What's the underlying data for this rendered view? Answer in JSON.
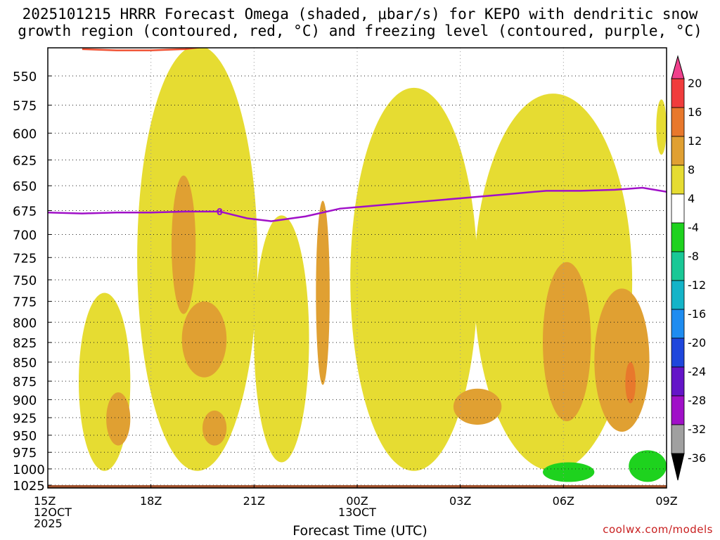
{
  "title_line1": "2025101215 HRRR Forecast Omega (shaded, μbar/s) for KEPO with dendritic snow",
  "title_line2": "growth region (contoured, red, °C) and freezing level (contoured, purple, °C)",
  "credit": "coolwx.com/models",
  "chart_data": {
    "type": "heatmap",
    "title": "2025101215 HRRR Forecast Omega (shaded, μbar/s) for KEPO with dendritic snow growth region (contoured, red, °C) and freezing level (contoured, purple, °C)",
    "xlabel": "Forecast Time (UTC)",
    "ylabel": "",
    "x_ticks": [
      {
        "hour": 0,
        "lines": [
          "15Z",
          "12OCT",
          "2025"
        ]
      },
      {
        "hour": 3,
        "lines": [
          "18Z"
        ]
      },
      {
        "hour": 6,
        "lines": [
          "21Z"
        ]
      },
      {
        "hour": 9,
        "lines": [
          "00Z",
          "13OCT"
        ]
      },
      {
        "hour": 12,
        "lines": [
          "03Z"
        ]
      },
      {
        "hour": 15,
        "lines": [
          "06Z"
        ]
      },
      {
        "hour": 18,
        "lines": [
          "09Z"
        ]
      }
    ],
    "xlim": [
      0,
      18
    ],
    "y_ticks": [
      550,
      575,
      600,
      625,
      650,
      675,
      700,
      725,
      750,
      775,
      800,
      825,
      850,
      875,
      900,
      925,
      950,
      975,
      1000,
      1025
    ],
    "ylim": [
      525,
      1030
    ],
    "y_scale": "log-pressure",
    "grid": true,
    "colorbar": {
      "labels": [
        "20",
        "16",
        "12",
        "8",
        "4",
        "-4",
        "-8",
        "-12",
        "-16",
        "-20",
        "-24",
        "-28",
        "-32",
        "-36"
      ],
      "colors": [
        "#f0408c",
        "#f03c3c",
        "#e8782c",
        "#e0a032",
        "#e6dc32",
        "#ffffff",
        "#1ed21e",
        "#19c896",
        "#14b4c8",
        "#1e8cf0",
        "#1e46dc",
        "#6414c8",
        "#a010c8",
        "#a0a0a0",
        "#000000"
      ]
    },
    "freezing_level": {
      "label": "0",
      "label_hour": 5.0,
      "points": [
        [
          0,
          677
        ],
        [
          1,
          678
        ],
        [
          2,
          677
        ],
        [
          3,
          677
        ],
        [
          4,
          676
        ],
        [
          5,
          676
        ],
        [
          5.8,
          683
        ],
        [
          6.5,
          686
        ],
        [
          7.5,
          681
        ],
        [
          8.5,
          673
        ],
        [
          9.5,
          670
        ],
        [
          10.5,
          667
        ],
        [
          11.5,
          664
        ],
        [
          12.5,
          661
        ],
        [
          13.5,
          658
        ],
        [
          14.5,
          655
        ],
        [
          15.5,
          655
        ],
        [
          16.5,
          654
        ],
        [
          17.3,
          652
        ],
        [
          18,
          656
        ]
      ]
    },
    "snow_growth_contour": {
      "color": "#f05032",
      "points": [
        [
          1.0,
          528
        ],
        [
          2.0,
          529
        ],
        [
          3.0,
          529
        ],
        [
          4.0,
          528
        ],
        [
          4.6,
          526
        ]
      ]
    },
    "terrain_pressure": 1025,
    "omega_regions": [
      {
        "value_range": "4 to 8",
        "color": "#e6dc32",
        "x": [
          0.9,
          2.4
        ],
        "p": [
          765,
          1003
        ]
      },
      {
        "value_range": "4 to 8",
        "color": "#e6dc32",
        "x": [
          2.6,
          6.1
        ],
        "p": [
          525,
          1003
        ]
      },
      {
        "value_range": "4 to 8",
        "color": "#e6dc32",
        "x": [
          6.0,
          7.6
        ],
        "p": [
          680,
          990
        ]
      },
      {
        "value_range": "4 to 8",
        "color": "#e6dc32",
        "x": [
          8.8,
          12.5
        ],
        "p": [
          560,
          1003
        ]
      },
      {
        "value_range": "4 to 8",
        "color": "#e6dc32",
        "x": [
          12.4,
          17.0
        ],
        "p": [
          565,
          1003
        ]
      },
      {
        "value_range": "4 to 8",
        "color": "#e6dc32",
        "x": [
          17.7,
          18.0
        ],
        "p": [
          570,
          620
        ]
      },
      {
        "value_range": "8 to 12",
        "color": "#e0a032",
        "x": [
          1.7,
          2.4
        ],
        "p": [
          890,
          965
        ]
      },
      {
        "value_range": "8 to 12",
        "color": "#e0a032",
        "x": [
          4.5,
          5.2
        ],
        "p": [
          915,
          965
        ]
      },
      {
        "value_range": "8 to 12",
        "color": "#e0a032",
        "x": [
          3.6,
          4.3
        ],
        "p": [
          640,
          790
        ]
      },
      {
        "value_range": "8 to 12",
        "color": "#e0a032",
        "x": [
          3.9,
          5.2
        ],
        "p": [
          775,
          870
        ]
      },
      {
        "value_range": "8 to 12",
        "color": "#e0a032",
        "x": [
          7.8,
          8.2
        ],
        "p": [
          665,
          880
        ]
      },
      {
        "value_range": "8 to 12",
        "color": "#e0a032",
        "x": [
          11.8,
          13.2
        ],
        "p": [
          885,
          935
        ]
      },
      {
        "value_range": "8 to 12",
        "color": "#e0a032",
        "x": [
          14.4,
          15.8
        ],
        "p": [
          730,
          930
        ]
      },
      {
        "value_range": "8 to 12",
        "color": "#e0a032",
        "x": [
          15.9,
          17.5
        ],
        "p": [
          760,
          945
        ]
      },
      {
        "value_range": "12 to 16",
        "color": "#e8782c",
        "x": [
          16.8,
          17.1
        ],
        "p": [
          850,
          905
        ]
      },
      {
        "value_range": "-4 to -8",
        "color": "#1ed21e",
        "x": [
          14.4,
          15.9
        ],
        "p": [
          990,
          1020
        ]
      },
      {
        "value_range": "-4 to -8",
        "color": "#1ed21e",
        "x": [
          16.9,
          18.0
        ],
        "p": [
          972,
          1020
        ]
      }
    ]
  }
}
